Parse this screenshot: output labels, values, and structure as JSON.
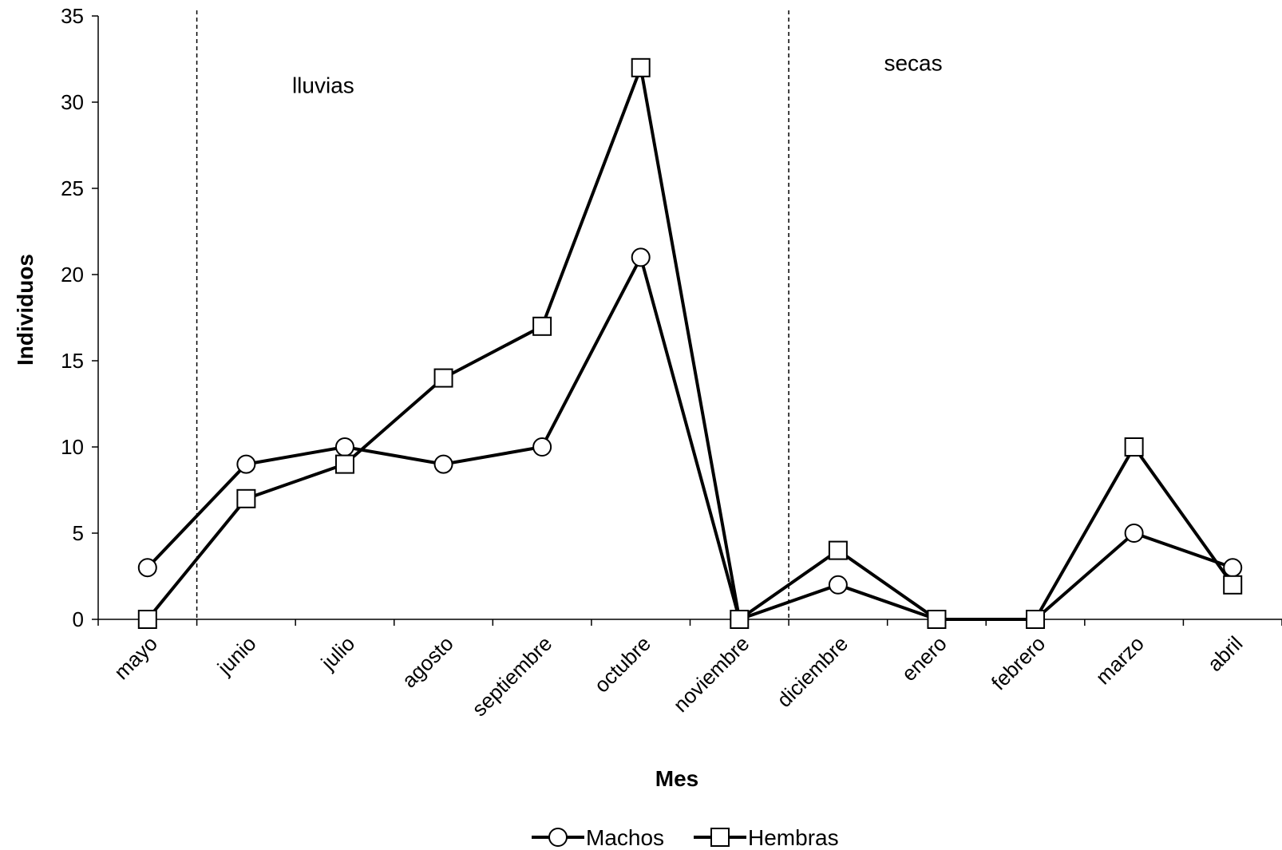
{
  "chart_data": {
    "type": "line",
    "title": "",
    "xlabel": "Mes",
    "ylabel": "Individuos",
    "ylim": [
      0,
      35
    ],
    "yticks": [
      0,
      5,
      10,
      15,
      20,
      25,
      30,
      35
    ],
    "grid": false,
    "legend_position": "bottom-center",
    "categories": [
      "mayo",
      "junio",
      "julio",
      "agosto",
      "septiembre",
      "octubre",
      "noviembre",
      "diciembre",
      "enero",
      "febrero",
      "marzo",
      "abril"
    ],
    "series": [
      {
        "name": "Machos",
        "marker": "circle",
        "color": "#000000",
        "values": [
          3,
          9,
          10,
          9,
          10,
          21,
          0,
          2,
          0,
          0,
          5,
          3
        ]
      },
      {
        "name": "Hembras",
        "marker": "square",
        "color": "#000000",
        "values": [
          0,
          7,
          9,
          14,
          17,
          32,
          0,
          4,
          0,
          0,
          10,
          2
        ]
      }
    ],
    "season_dividers": [
      {
        "between": [
          "mayo",
          "junio"
        ]
      },
      {
        "between": [
          "noviembre",
          "diciembre"
        ]
      }
    ],
    "annotations": [
      {
        "text": "lluvias",
        "x_category": "julio",
        "y": 31
      },
      {
        "text": "secas",
        "x_category": "enero",
        "y": 32.3
      }
    ]
  }
}
